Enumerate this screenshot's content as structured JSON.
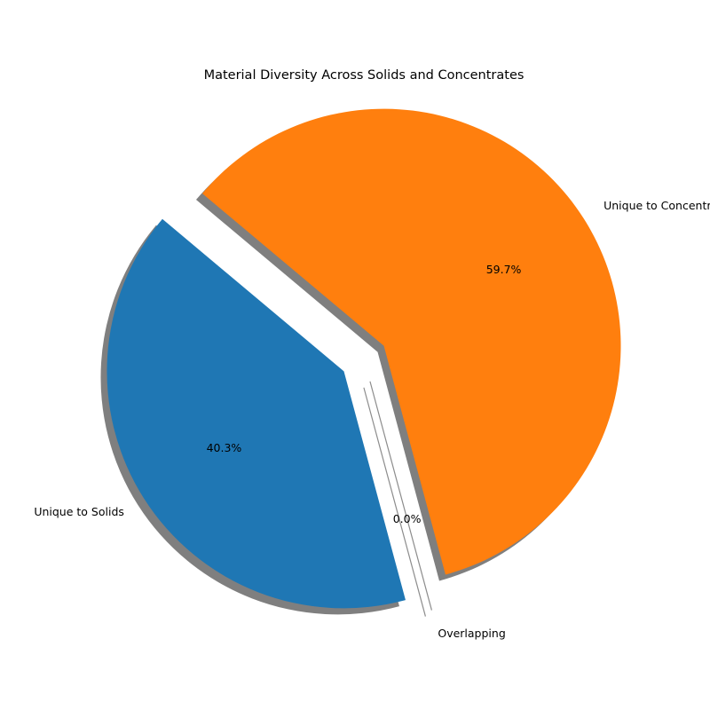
{
  "chart_data": {
    "type": "pie",
    "title": "Material Diversity Across Solids and Concentrates",
    "slices": [
      {
        "label": "Unique to Solids",
        "value": 40.3,
        "pct_label": "40.3%",
        "color": "#1f77b4",
        "exploded": true
      },
      {
        "label": "Overlapping",
        "value": 0.0,
        "pct_label": "0.0%",
        "color": "#2ca02c",
        "exploded": true
      },
      {
        "label": "Unique to Concentrates",
        "value": 59.7,
        "pct_label": "59.7%",
        "color": "#ff7f0e",
        "exploded": true
      }
    ],
    "start_angle_deg": 140,
    "shadow": true,
    "legend": "none"
  }
}
